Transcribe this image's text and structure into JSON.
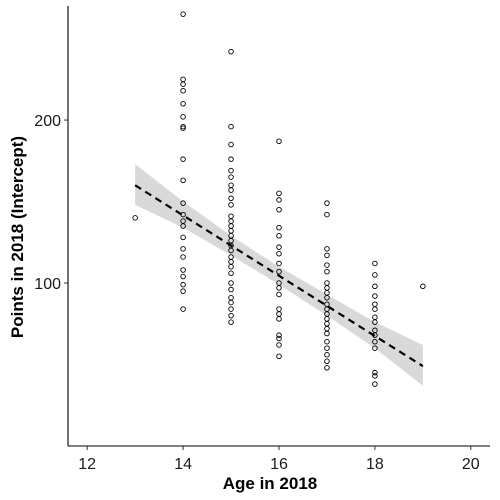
{
  "chart_data": {
    "type": "scatter",
    "xlabel": "Age in 2018",
    "ylabel": "Points in 2018 (Intercept)",
    "xlim": [
      11.6,
      20.4
    ],
    "ylim": [
      0,
      270
    ],
    "x_ticks": [
      12,
      14,
      16,
      18,
      20
    ],
    "y_ticks": [
      100,
      200
    ],
    "grid": false,
    "legend": "none",
    "series": [
      {
        "points": [
          [
            13,
            140
          ],
          [
            14,
            265
          ],
          [
            14,
            225
          ],
          [
            14,
            222
          ],
          [
            14,
            218
          ],
          [
            14,
            210
          ],
          [
            14,
            202
          ],
          [
            14,
            196
          ],
          [
            14,
            195
          ],
          [
            14,
            176
          ],
          [
            14,
            163
          ],
          [
            14,
            149
          ],
          [
            14,
            142
          ],
          [
            14,
            138
          ],
          [
            14,
            135
          ],
          [
            14,
            128
          ],
          [
            14,
            121
          ],
          [
            14,
            116
          ],
          [
            14,
            108
          ],
          [
            14,
            104
          ],
          [
            14,
            99
          ],
          [
            14,
            95
          ],
          [
            14,
            84
          ],
          [
            15,
            242
          ],
          [
            15,
            196
          ],
          [
            15,
            185
          ],
          [
            15,
            176
          ],
          [
            15,
            169
          ],
          [
            15,
            165
          ],
          [
            15,
            160
          ],
          [
            15,
            157
          ],
          [
            15,
            152
          ],
          [
            15,
            148
          ],
          [
            15,
            141
          ],
          [
            15,
            138
          ],
          [
            15,
            135
          ],
          [
            15,
            132
          ],
          [
            15,
            129
          ],
          [
            15,
            126
          ],
          [
            15,
            123
          ],
          [
            15,
            120
          ],
          [
            15,
            116
          ],
          [
            15,
            113
          ],
          [
            15,
            110
          ],
          [
            15,
            106
          ],
          [
            15,
            100
          ],
          [
            15,
            96
          ],
          [
            15,
            91
          ],
          [
            15,
            88
          ],
          [
            15,
            84
          ],
          [
            15,
            80
          ],
          [
            15,
            76
          ],
          [
            16,
            187
          ],
          [
            16,
            155
          ],
          [
            16,
            151
          ],
          [
            16,
            145
          ],
          [
            16,
            134
          ],
          [
            16,
            129
          ],
          [
            16,
            122
          ],
          [
            16,
            118
          ],
          [
            16,
            112
          ],
          [
            16,
            107
          ],
          [
            16,
            100
          ],
          [
            16,
            97
          ],
          [
            16,
            93
          ],
          [
            16,
            84
          ],
          [
            16,
            81
          ],
          [
            16,
            78
          ],
          [
            16,
            68
          ],
          [
            16,
            66
          ],
          [
            16,
            62
          ],
          [
            16,
            55
          ],
          [
            17,
            149
          ],
          [
            17,
            142
          ],
          [
            17,
            121
          ],
          [
            17,
            117
          ],
          [
            17,
            111
          ],
          [
            17,
            107
          ],
          [
            17,
            100
          ],
          [
            17,
            97
          ],
          [
            17,
            94
          ],
          [
            17,
            91
          ],
          [
            17,
            87
          ],
          [
            17,
            84
          ],
          [
            17,
            81
          ],
          [
            17,
            78
          ],
          [
            17,
            75
          ],
          [
            17,
            72
          ],
          [
            17,
            69
          ],
          [
            17,
            64
          ],
          [
            17,
            60
          ],
          [
            17,
            56
          ],
          [
            17,
            52
          ],
          [
            17,
            48
          ],
          [
            18,
            112
          ],
          [
            18,
            105
          ],
          [
            18,
            98
          ],
          [
            18,
            92
          ],
          [
            18,
            87
          ],
          [
            18,
            84
          ],
          [
            18,
            79
          ],
          [
            18,
            76
          ],
          [
            18,
            71
          ],
          [
            18,
            68
          ],
          [
            18,
            64
          ],
          [
            18,
            60
          ],
          [
            18,
            45
          ],
          [
            18,
            43
          ],
          [
            18,
            38
          ],
          [
            19,
            98
          ]
        ]
      }
    ],
    "trend": {
      "style": "dashed",
      "points": [
        [
          13,
          160
        ],
        [
          14,
          141.5
        ],
        [
          15,
          123
        ],
        [
          16,
          104.5
        ],
        [
          17,
          86
        ],
        [
          18,
          67.5
        ],
        [
          19,
          49
        ]
      ],
      "ci_lower": [
        [
          13,
          148
        ],
        [
          14,
          134
        ],
        [
          15,
          117
        ],
        [
          16,
          99
        ],
        [
          17,
          80
        ],
        [
          18,
          60
        ],
        [
          19,
          37
        ]
      ],
      "ci_upper": [
        [
          13,
          173
        ],
        [
          14,
          150
        ],
        [
          15,
          129
        ],
        [
          16,
          110
        ],
        [
          17,
          93
        ],
        [
          18,
          76
        ],
        [
          19,
          62
        ]
      ],
      "band_color": "#d9d9d9"
    }
  }
}
